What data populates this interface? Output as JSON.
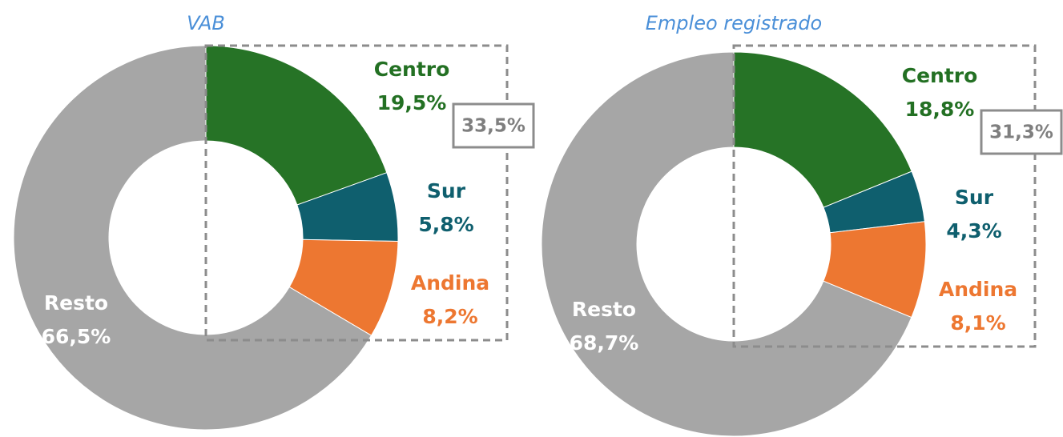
{
  "chart_data": [
    {
      "type": "donut",
      "title": "VAB",
      "categories": [
        "Centro",
        "Sur",
        "Andina",
        "Resto"
      ],
      "values": [
        19.5,
        5.8,
        8.2,
        66.5
      ],
      "value_labels": [
        "19,5%",
        "5,8%",
        "8,2%",
        "66,5%"
      ],
      "colors": [
        "#267326",
        "#0f5f6e",
        "#ed7731",
        "#a6a6a6"
      ],
      "label_colors": [
        "#237023",
        "#0f5f6e",
        "#ed7731",
        "#ffffff"
      ],
      "annotation": "33,5%"
    },
    {
      "type": "donut",
      "title": "Empleo registrado",
      "categories": [
        "Centro",
        "Sur",
        "Andina",
        "Resto"
      ],
      "values": [
        18.8,
        4.3,
        8.1,
        68.7
      ],
      "value_labels": [
        "18,8%",
        "4,3%",
        "8,1%",
        "68,7%"
      ],
      "colors": [
        "#267326",
        "#0f5f6e",
        "#ed7731",
        "#a6a6a6"
      ],
      "label_colors": [
        "#237023",
        "#0f5f6e",
        "#ed7731",
        "#ffffff"
      ],
      "annotation": "31,3%"
    }
  ]
}
